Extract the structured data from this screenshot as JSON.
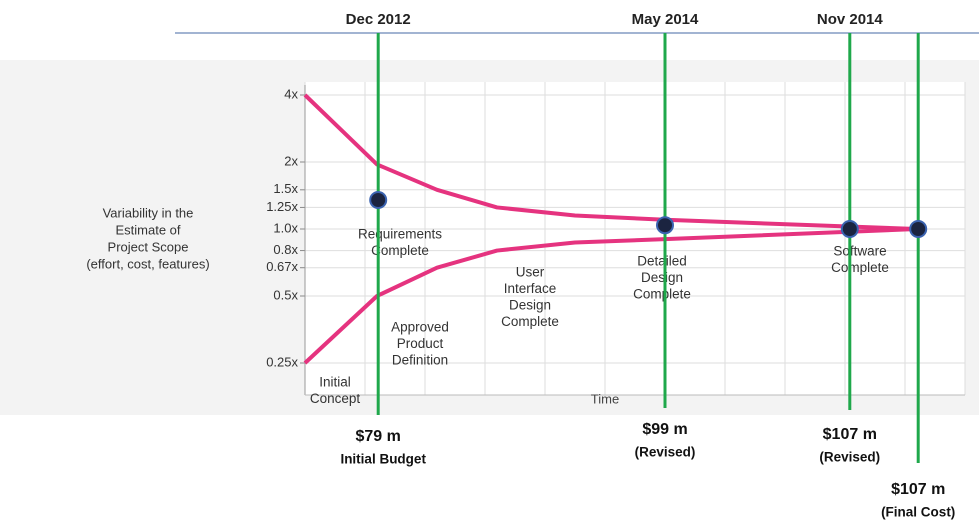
{
  "chart_data": {
    "type": "line",
    "ylabel": [
      "Variability in the",
      "Estimate of",
      "Project Scope",
      "(effort, cost, features)"
    ],
    "xlabel": "Time",
    "log_y": true,
    "grid": true,
    "xlim": [
      0,
      11
    ],
    "ylim": [
      0.25,
      4
    ],
    "yticks": [
      {
        "value": 4,
        "label": "4x"
      },
      {
        "value": 2,
        "label": "2x"
      },
      {
        "value": 1.5,
        "label": "1.5x"
      },
      {
        "value": 1.25,
        "label": "1.25x"
      },
      {
        "value": 1.0,
        "label": "1.0x"
      },
      {
        "value": 0.8,
        "label": "0.8x"
      },
      {
        "value": 0.67,
        "label": "0.67x"
      },
      {
        "value": 0.5,
        "label": "0.5x"
      },
      {
        "value": 0.25,
        "label": "0.25x"
      }
    ],
    "x": [
      0,
      1.2,
      2.2,
      3.2,
      4.5,
      6,
      10.2
    ],
    "point_labels": [
      [
        "Initial",
        "Concept"
      ],
      [
        "Approved",
        "Product",
        "Definition"
      ],
      [
        "Requirements",
        "Complete"
      ],
      [
        "User",
        "Interface",
        "Design",
        "Complete"
      ],
      null,
      [
        "Detailed",
        "Design",
        "Complete"
      ],
      [
        "Software",
        "Complete"
      ]
    ],
    "series": [
      {
        "color": "#e5337f",
        "values": [
          4,
          1.95,
          1.5,
          1.25,
          1.15,
          1.1,
          1.0
        ]
      },
      {
        "color": "#e5337f",
        "values": [
          0.25,
          0.5,
          0.67,
          0.8,
          0.87,
          0.9,
          1.0
        ]
      }
    ],
    "milestone_color": "#1fa84b",
    "marker_color": "#1b2440",
    "milestones": [
      {
        "date": "Dec 2012",
        "x": 1.22,
        "y": 1.35,
        "amount": "$79 m",
        "note": "Initial Budget"
      },
      {
        "date": "May 2014",
        "x": 6,
        "y": 1.04,
        "amount": "$99 m",
        "note": "(Revised)"
      },
      {
        "date": "Nov 2014",
        "x": 9.08,
        "y": 1.0,
        "amount": "$107 m",
        "note": "(Revised)"
      },
      {
        "x": 10.22,
        "y": 1.0,
        "amount": "$107 m",
        "note": "(Final Cost)"
      }
    ]
  }
}
